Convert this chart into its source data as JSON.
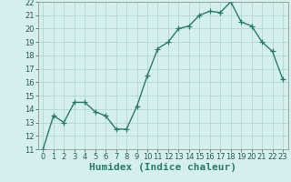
{
  "xlabel": "Humidex (Indice chaleur)",
  "x": [
    0,
    1,
    2,
    3,
    4,
    5,
    6,
    7,
    8,
    9,
    10,
    11,
    12,
    13,
    14,
    15,
    16,
    17,
    18,
    19,
    20,
    21,
    22,
    23
  ],
  "y": [
    11,
    13.5,
    13,
    14.5,
    14.5,
    13.8,
    13.5,
    12.5,
    12.5,
    14.2,
    16.5,
    18.5,
    19.0,
    20.0,
    20.2,
    21.0,
    21.3,
    21.2,
    22.0,
    20.5,
    20.2,
    19.0,
    18.3,
    16.2
  ],
  "line_color": "#2a7a6a",
  "marker": "+",
  "marker_size": 4,
  "bg_color": "#d5f0ec",
  "grid_color": "#b0d8d0",
  "ylim": [
    11,
    22
  ],
  "xlim": [
    -0.5,
    23.5
  ],
  "yticks": [
    11,
    12,
    13,
    14,
    15,
    16,
    17,
    18,
    19,
    20,
    21,
    22
  ],
  "xticks": [
    0,
    1,
    2,
    3,
    4,
    5,
    6,
    7,
    8,
    9,
    10,
    11,
    12,
    13,
    14,
    15,
    16,
    17,
    18,
    19,
    20,
    21,
    22,
    23
  ],
  "tick_fontsize": 6,
  "xlabel_fontsize": 8
}
